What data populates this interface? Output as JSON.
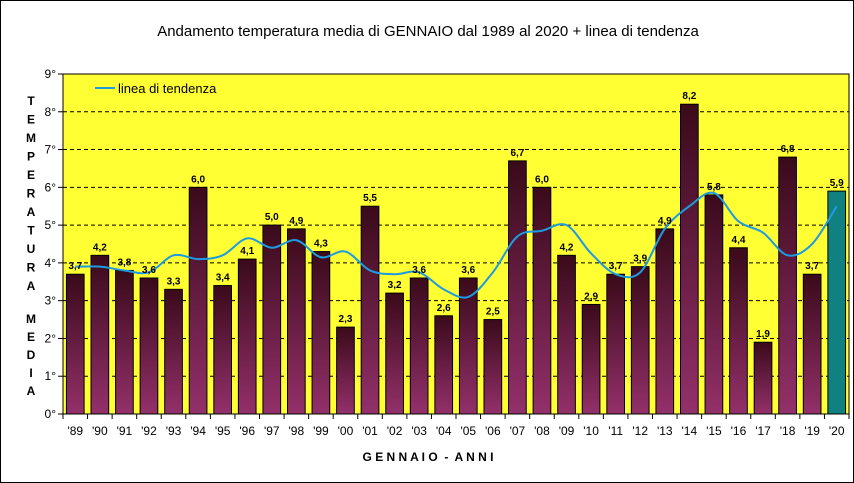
{
  "chart_data": {
    "type": "bar",
    "title": "Andamento temperatura media di GENNAIO dal 1989 al 2020 + linea di tendenza",
    "xlabel": "G E N N A I O  -  A N N I",
    "ylabel_top": "T E M P E R A T U R A",
    "ylabel_bottom": "M E D I A",
    "ylim": [
      0,
      9
    ],
    "yticks": [
      "0°",
      "1°",
      "2°",
      "3°",
      "4°",
      "5°",
      "6°",
      "7°",
      "8°",
      "9°"
    ],
    "grid": true,
    "legend_position": "top-left",
    "categories": [
      "'89",
      "'90",
      "'91",
      "'92",
      "'93",
      "'94",
      "'95",
      "'96",
      "'97",
      "'98",
      "'99",
      "'00",
      "'01",
      "'02",
      "'03",
      "'04",
      "'05",
      "'06",
      "'07",
      "'08",
      "'09",
      "'10",
      "'11",
      "'12",
      "'13",
      "'14",
      "'15",
      "'16",
      "'17",
      "'18",
      "'19",
      "'20"
    ],
    "series": [
      {
        "name": "temperatura media",
        "values": [
          3.7,
          4.2,
          3.8,
          3.6,
          3.3,
          6.0,
          3.4,
          4.1,
          5.0,
          4.9,
          4.3,
          2.3,
          5.5,
          3.2,
          3.6,
          2.6,
          3.6,
          2.5,
          6.7,
          6.0,
          4.2,
          2.9,
          3.7,
          3.9,
          4.9,
          8.2,
          5.8,
          4.4,
          1.9,
          6.8,
          3.7,
          5.9
        ],
        "labels": [
          "3,7",
          "4,2",
          "3,8",
          "3,6",
          "3,3",
          "6,0",
          "3,4",
          "4,1",
          "5,0",
          "4,9",
          "4,3",
          "2,3",
          "5,5",
          "3,2",
          "3,6",
          "2,6",
          "3,6",
          "2,5",
          "6,7",
          "6,0",
          "4,2",
          "2,9",
          "3,7",
          "3,9",
          "4,9",
          "8,2",
          "5,8",
          "4,4",
          "1,9",
          "6,8",
          "3,7",
          "5,9"
        ],
        "highlight_last": true
      },
      {
        "name": "linea di tendenza",
        "type": "line",
        "values": [
          3.9,
          3.9,
          3.8,
          3.75,
          4.2,
          4.1,
          4.2,
          4.65,
          4.4,
          4.6,
          4.15,
          4.3,
          3.8,
          3.7,
          3.75,
          3.3,
          3.1,
          3.75,
          4.7,
          4.85,
          5.0,
          4.25,
          3.7,
          3.75,
          4.9,
          5.5,
          5.85,
          5.1,
          4.8,
          4.2,
          4.5,
          5.5
        ]
      }
    ],
    "colors": {
      "plot_bg": "#ffff33",
      "bar_top": "#3a0a1a",
      "bar_bottom": "#93306a",
      "bar_last": "#118080",
      "trend": "#1e9be0"
    }
  }
}
